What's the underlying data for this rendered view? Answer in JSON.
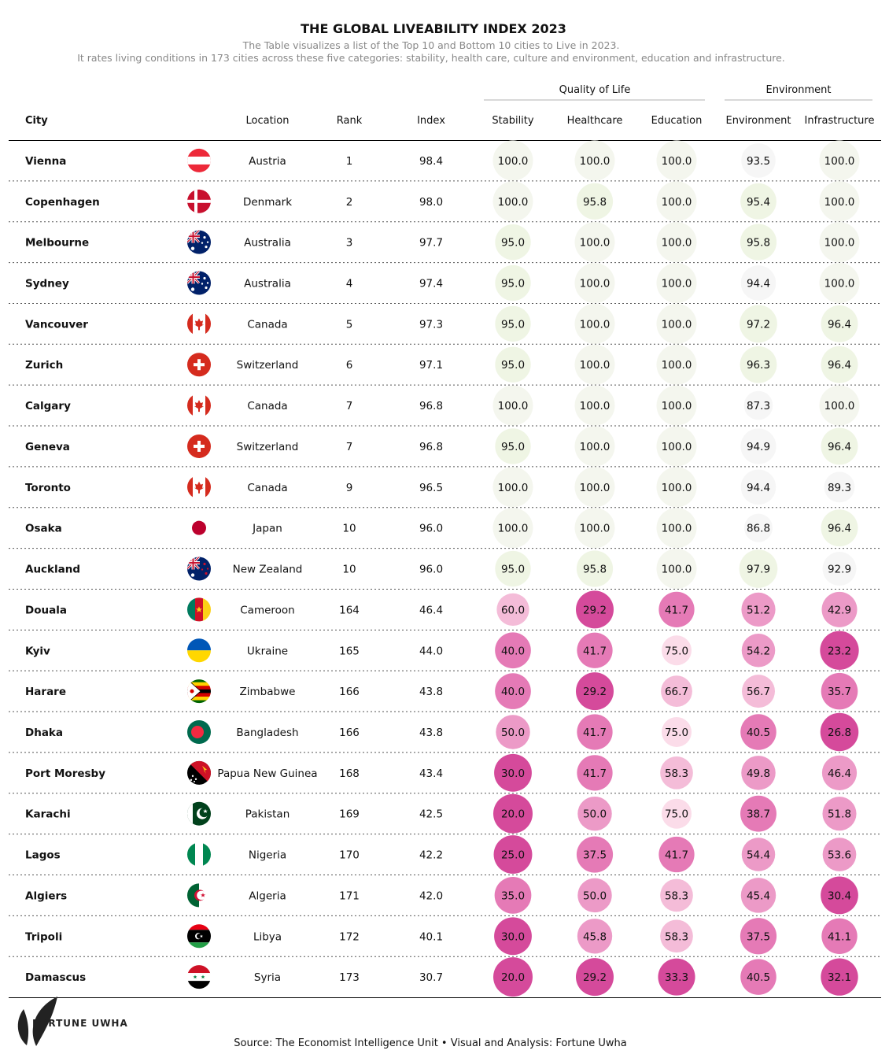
{
  "title": "THE GLOBAL LIVEABILITY INDEX 2023",
  "subtitle_lines": [
    "The Table visualizes a list of the Top 10 and Bottom 10 cities to Live in 2023.",
    "It rates living conditions in 173 cities across these five categories: stability, health care, culture and environment, education and infrastructure."
  ],
  "group_headers": [
    "Quality of Life",
    "Environment"
  ],
  "columns": [
    "City",
    "Location",
    "Rank",
    "Index",
    "Stability",
    "Healthcare",
    "Education",
    "Environment",
    "Infrastructure"
  ],
  "footer": {
    "logo_text": "FORTUNE UWHA",
    "source": "Source: The Economist Intelligence Unit • Visual and Analysis: Fortune Uwha"
  },
  "colors": {
    "high_scale": [
      "#f6f6f6",
      "#edf3e3"
    ],
    "low_scale": [
      "#fbdce9",
      "#f4bcd8",
      "#ec9ac7",
      "#e57ab6",
      "#d54a9b"
    ],
    "rule": "#000000",
    "divider": "#555555"
  },
  "chart_data": {
    "type": "table",
    "columns": [
      "City",
      "Location",
      "Rank",
      "Index",
      "Stability",
      "Healthcare",
      "Education",
      "Environment",
      "Infrastructure"
    ],
    "rows": [
      {
        "city": "Vienna",
        "flag": "austria-flag",
        "location": "Austria",
        "rank": "1",
        "index": "98.4",
        "scores": [
          100.0,
          100.0,
          100.0,
          93.5,
          100.0
        ]
      },
      {
        "city": "Copenhagen",
        "flag": "denmark-flag",
        "location": "Denmark",
        "rank": "2",
        "index": "98.0",
        "scores": [
          100.0,
          95.8,
          100.0,
          95.4,
          100.0
        ]
      },
      {
        "city": "Melbourne",
        "flag": "australia-flag",
        "location": "Australia",
        "rank": "3",
        "index": "97.7",
        "scores": [
          95.0,
          100.0,
          100.0,
          95.8,
          100.0
        ]
      },
      {
        "city": "Sydney",
        "flag": "australia-flag",
        "location": "Australia",
        "rank": "4",
        "index": "97.4",
        "scores": [
          95.0,
          100.0,
          100.0,
          94.4,
          100.0
        ]
      },
      {
        "city": "Vancouver",
        "flag": "canada-flag",
        "location": "Canada",
        "rank": "5",
        "index": "97.3",
        "scores": [
          95.0,
          100.0,
          100.0,
          97.2,
          96.4
        ]
      },
      {
        "city": "Zurich",
        "flag": "switzerland-flag",
        "location": "Switzerland",
        "rank": "6",
        "index": "97.1",
        "scores": [
          95.0,
          100.0,
          100.0,
          96.3,
          96.4
        ]
      },
      {
        "city": "Calgary",
        "flag": "canada-flag",
        "location": "Canada",
        "rank": "7",
        "index": "96.8",
        "scores": [
          100.0,
          100.0,
          100.0,
          87.3,
          100.0
        ]
      },
      {
        "city": "Geneva",
        "flag": "switzerland-flag",
        "location": "Switzerland",
        "rank": "7",
        "index": "96.8",
        "scores": [
          95.0,
          100.0,
          100.0,
          94.9,
          96.4
        ]
      },
      {
        "city": "Toronto",
        "flag": "canada-flag",
        "location": "Canada",
        "rank": "9",
        "index": "96.5",
        "scores": [
          100.0,
          100.0,
          100.0,
          94.4,
          89.3
        ]
      },
      {
        "city": "Osaka",
        "flag": "japan-flag",
        "location": "Japan",
        "rank": "10",
        "index": "96.0",
        "scores": [
          100.0,
          100.0,
          100.0,
          86.8,
          96.4
        ]
      },
      {
        "city": "Auckland",
        "flag": "new-zealand-flag",
        "location": "New Zealand",
        "rank": "10",
        "index": "96.0",
        "scores": [
          95.0,
          95.8,
          100.0,
          97.9,
          92.9
        ]
      },
      {
        "city": "Douala",
        "flag": "cameroon-flag",
        "location": "Cameroon",
        "rank": "164",
        "index": "46.4",
        "scores": [
          60.0,
          29.2,
          41.7,
          51.2,
          42.9
        ]
      },
      {
        "city": "Kyiv",
        "flag": "ukraine-flag",
        "location": "Ukraine",
        "rank": "165",
        "index": "44.0",
        "scores": [
          40.0,
          41.7,
          75.0,
          54.2,
          23.2
        ]
      },
      {
        "city": "Harare",
        "flag": "zimbabwe-flag",
        "location": "Zimbabwe",
        "rank": "166",
        "index": "43.8",
        "scores": [
          40.0,
          29.2,
          66.7,
          56.7,
          35.7
        ]
      },
      {
        "city": "Dhaka",
        "flag": "bangladesh-flag",
        "location": "Bangladesh",
        "rank": "166",
        "index": "43.8",
        "scores": [
          50.0,
          41.7,
          75.0,
          40.5,
          26.8
        ]
      },
      {
        "city": "Port Moresby",
        "flag": "papua-new-guinea-flag",
        "location": "Papua New Guinea",
        "rank": "168",
        "index": "43.4",
        "scores": [
          30.0,
          41.7,
          58.3,
          49.8,
          46.4
        ]
      },
      {
        "city": "Karachi",
        "flag": "pakistan-flag",
        "location": "Pakistan",
        "rank": "169",
        "index": "42.5",
        "scores": [
          20.0,
          50.0,
          75.0,
          38.7,
          51.8
        ]
      },
      {
        "city": "Lagos",
        "flag": "nigeria-flag",
        "location": "Nigeria",
        "rank": "170",
        "index": "42.2",
        "scores": [
          25.0,
          37.5,
          41.7,
          54.4,
          53.6
        ]
      },
      {
        "city": "Algiers",
        "flag": "algeria-flag",
        "location": "Algeria",
        "rank": "171",
        "index": "42.0",
        "scores": [
          35.0,
          50.0,
          58.3,
          45.4,
          30.4
        ]
      },
      {
        "city": "Tripoli",
        "flag": "libya-flag",
        "location": "Libya",
        "rank": "172",
        "index": "40.1",
        "scores": [
          30.0,
          45.8,
          58.3,
          37.5,
          41.1
        ]
      },
      {
        "city": "Damascus",
        "flag": "syria-flag",
        "location": "Syria",
        "rank": "173",
        "index": "30.7",
        "scores": [
          20.0,
          29.2,
          33.3,
          40.5,
          32.1
        ]
      }
    ]
  }
}
